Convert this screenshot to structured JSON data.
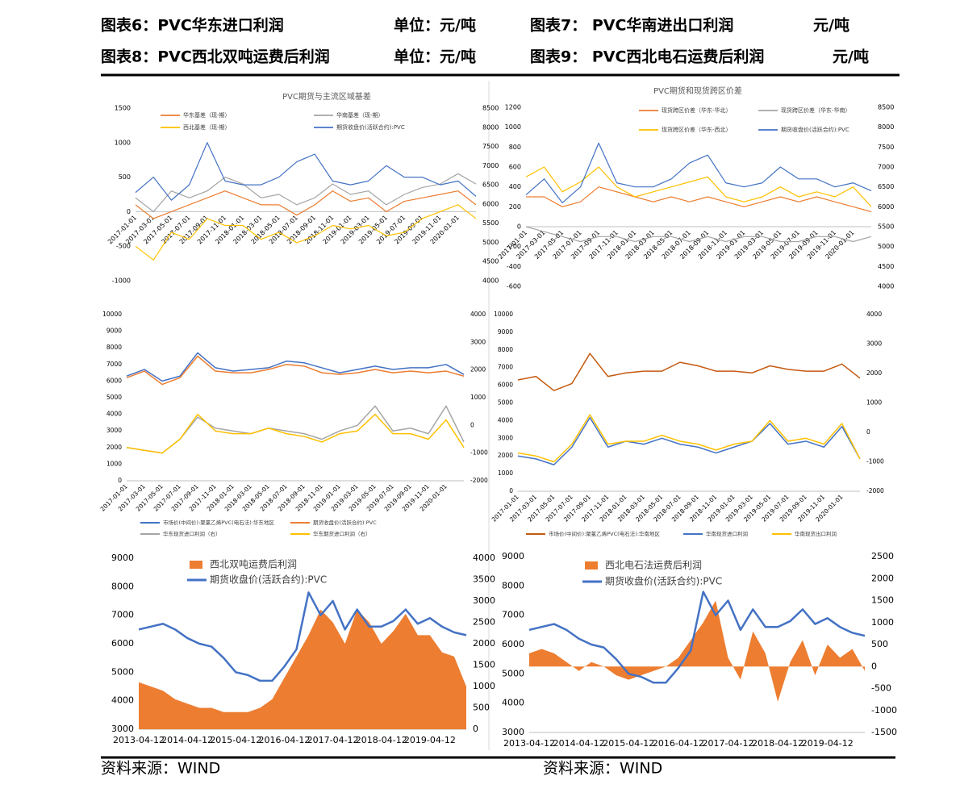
{
  "captions": [
    {
      "title": "图表6：PVC华东进口利润",
      "unit": "单位：元/吨"
    },
    {
      "title": "图表7：  PVC华南进出口利润",
      "unit": "元/吨"
    },
    {
      "title": "图表8：PVC西北双吨运费后利润",
      "unit": "单位：元/吨"
    },
    {
      "title": "图表9：  PVC西北电石运费后利润",
      "unit": "元/吨"
    }
  ],
  "sources": [
    "资料来源：WIND",
    "资料来源：WIND"
  ],
  "chart_data": [
    {
      "type": "line",
      "title": "PVC期货与主流区域基差",
      "categories": [
        "2017-01-01",
        "2017-03-01",
        "2017-05-01",
        "2017-07-01",
        "2017-09-01",
        "2017-11-01",
        "2018-01-01",
        "2018-03-01",
        "2018-05-01",
        "2018-07-01",
        "2018-09-01",
        "2018-11-01",
        "2019-01-01",
        "2019-03-01",
        "2019-05-01",
        "2019-07-01",
        "2019-09-01",
        "2019-11-01",
        "2020-01-01",
        null
      ],
      "ylim": [
        -1000,
        1500
      ],
      "yticks": [
        -1000,
        -500,
        0,
        500,
        1000,
        1500
      ],
      "y2lim": [
        4000,
        8500
      ],
      "y2ticks": [
        4000,
        4500,
        5000,
        5500,
        6000,
        6500,
        7000,
        7500,
        8000,
        8500
      ],
      "series": [
        {
          "name": "华东基差（现-期）",
          "color": "#ed7d31",
          "values": [
            100,
            -100,
            0,
            100,
            200,
            300,
            200,
            100,
            100,
            -50,
            100,
            300,
            150,
            200,
            0,
            150,
            200,
            250,
            300,
            100
          ]
        },
        {
          "name": "华南基差（现-期）",
          "color": "#a5a5a5",
          "values": [
            200,
            0,
            300,
            200,
            300,
            500,
            400,
            200,
            250,
            100,
            200,
            400,
            250,
            300,
            100,
            250,
            350,
            400,
            550,
            400
          ]
        },
        {
          "name": "西北基差（现-期）",
          "color": "#ffc000",
          "values": [
            -500,
            -700,
            -300,
            -400,
            -100,
            -200,
            -200,
            -400,
            -300,
            -450,
            -350,
            -200,
            -250,
            -200,
            -350,
            -300,
            -100,
            0,
            100,
            -100
          ]
        },
        {
          "name": "期货收盘价(活跃合约):PVC",
          "color": "#4472c4",
          "axis": "y2",
          "values": [
            6300,
            6700,
            6100,
            6500,
            7600,
            6600,
            6500,
            6500,
            6700,
            7100,
            7300,
            6600,
            6500,
            6600,
            7000,
            6700,
            6700,
            6500,
            6600,
            6200
          ]
        }
      ]
    },
    {
      "type": "line",
      "title": "PVC期货和现货跨区价差",
      "categories": [
        "2017-01-01",
        "2017-03-01",
        "2017-05-01",
        "2017-07-01",
        "2017-09-01",
        "2017-11-01",
        "2018-01-01",
        "2018-03-01",
        "2018-05-01",
        "2018-07-01",
        "2018-09-01",
        "2018-11-01",
        "2019-01-01",
        "2019-03-01",
        "2019-05-01",
        "2019-07-01",
        "2019-09-01",
        "2019-11-01",
        "2020-01-01",
        null
      ],
      "ylim": [
        -600,
        1200
      ],
      "yticks": [
        -600,
        -400,
        -200,
        0,
        200,
        400,
        600,
        800,
        1000,
        1200
      ],
      "y2lim": [
        4000,
        8500
      ],
      "y2ticks": [
        4000,
        4500,
        5000,
        5500,
        6000,
        6500,
        7000,
        7500,
        8000,
        8500
      ],
      "series": [
        {
          "name": "现货跨区价差（华东-华北）",
          "color": "#ed7d31",
          "values": [
            300,
            300,
            200,
            250,
            400,
            350,
            300,
            250,
            300,
            250,
            300,
            250,
            200,
            250,
            300,
            250,
            300,
            250,
            200,
            150
          ]
        },
        {
          "name": "现货跨区价差（华东-华南）",
          "color": "#a5a5a5",
          "values": [
            0,
            -50,
            -100,
            -150,
            -100,
            -100,
            -150,
            -100,
            -100,
            -150,
            -100,
            -150,
            -100,
            -100,
            -150,
            -150,
            -100,
            -100,
            -150,
            -100
          ]
        },
        {
          "name": "现货跨区价差（华东-西北）",
          "color": "#ffc000",
          "values": [
            500,
            600,
            350,
            450,
            600,
            400,
            300,
            350,
            400,
            450,
            500,
            300,
            250,
            300,
            400,
            300,
            350,
            300,
            400,
            200
          ]
        },
        {
          "name": "期货收盘价(活跃合约):PVC",
          "color": "#4472c4",
          "axis": "y2",
          "values": [
            6300,
            6700,
            6100,
            6500,
            7600,
            6600,
            6500,
            6500,
            6700,
            7100,
            7300,
            6600,
            6500,
            6600,
            7000,
            6700,
            6700,
            6500,
            6600,
            6400
          ]
        }
      ]
    },
    {
      "type": "line",
      "categories": [
        "2017-01-01",
        "2017-03-01",
        "2017-05-01",
        "2017-07-01",
        "2017-09-01",
        "2017-11-01",
        "2018-01-01",
        "2018-03-01",
        "2018-05-01",
        "2018-07-01",
        "2018-09-01",
        "2018-11-01",
        "2019-01-01",
        "2019-03-01",
        "2019-05-01",
        "2019-07-01",
        "2019-09-01",
        "2019-11-01",
        "2020-01-01",
        null
      ],
      "ylim": [
        0,
        10000
      ],
      "yticks": [
        0,
        1000,
        2000,
        3000,
        4000,
        5000,
        6000,
        7000,
        8000,
        9000,
        10000
      ],
      "y2lim": [
        -2000,
        4000
      ],
      "y2ticks": [
        -2000,
        -1000,
        0,
        1000,
        2000,
        3000,
        4000
      ],
      "series": [
        {
          "name": "市场价(中间价):聚氯乙烯PVC(电石法):华东地区",
          "color": "#4472c4",
          "values": [
            6300,
            6700,
            6000,
            6300,
            7700,
            6800,
            6600,
            6700,
            6800,
            7200,
            7100,
            6800,
            6500,
            6700,
            6900,
            6700,
            6800,
            6800,
            7000,
            6400
          ]
        },
        {
          "name": "期货收盘价(活跃合约):PVC",
          "color": "#ed7d31",
          "values": [
            6200,
            6600,
            5800,
            6200,
            7500,
            6600,
            6500,
            6500,
            6700,
            7000,
            6900,
            6500,
            6400,
            6500,
            6700,
            6500,
            6600,
            6500,
            6600,
            6300
          ]
        },
        {
          "name": "华东现货进口利润（右）",
          "color": "#a5a5a5",
          "axis": "y2",
          "values": [
            -800,
            -900,
            -1000,
            -500,
            300,
            -100,
            -200,
            -300,
            -100,
            -200,
            -300,
            -500,
            -200,
            0,
            700,
            -200,
            -100,
            -300,
            700,
            -600
          ]
        },
        {
          "name": "华东期货进口利润（右）",
          "color": "#ffc000",
          "axis": "y2",
          "values": [
            -800,
            -900,
            -1000,
            -500,
            400,
            -200,
            -300,
            -300,
            -100,
            -300,
            -400,
            -600,
            -300,
            -200,
            400,
            -300,
            -300,
            -500,
            200,
            -800
          ]
        }
      ]
    },
    {
      "type": "line",
      "categories": [
        "2017-01-01",
        "2017-03-01",
        "2017-05-01",
        "2017-07-01",
        "2017-09-01",
        "2017-11-01",
        "2018-01-01",
        "2018-03-01",
        "2018-05-01",
        "2018-07-01",
        "2018-09-01",
        "2018-11-01",
        "2019-01-01",
        "2019-03-01",
        "2019-05-01",
        "2019-07-01",
        "2019-09-01",
        "2019-11-01",
        "2020-01-01",
        null
      ],
      "ylim": [
        0,
        10000
      ],
      "yticks": [
        0,
        1000,
        2000,
        3000,
        4000,
        5000,
        6000,
        7000,
        8000,
        9000,
        10000
      ],
      "y2lim": [
        -2000,
        4000
      ],
      "y2ticks": [
        -2000,
        -1000,
        0,
        1000,
        2000,
        3000,
        4000
      ],
      "series": [
        {
          "name": "市场价(中间价):聚氯乙烯PVC(电石法):华南地区",
          "color": "#c55a11",
          "values": [
            6300,
            6500,
            5700,
            6100,
            7800,
            6500,
            6700,
            6800,
            6800,
            7300,
            7100,
            6800,
            6800,
            6700,
            7100,
            6900,
            6800,
            6800,
            7200,
            6400
          ]
        },
        {
          "name": "华南现货进口利润",
          "color": "#4472c4",
          "axis": "y2",
          "values": [
            -800,
            -900,
            -1100,
            -500,
            500,
            -500,
            -300,
            -400,
            -200,
            -400,
            -500,
            -700,
            -500,
            -300,
            300,
            -400,
            -300,
            -500,
            200,
            -900
          ]
        },
        {
          "name": "华南现货出口利润",
          "color": "#ffc000",
          "axis": "y2",
          "values": [
            -700,
            -800,
            -1000,
            -400,
            600,
            -400,
            -300,
            -300,
            -100,
            -300,
            -400,
            -600,
            -400,
            -300,
            400,
            -300,
            -200,
            -400,
            300,
            -900
          ]
        }
      ]
    },
    {
      "type": "line",
      "categories": [
        "2013-04-12",
        null,
        null,
        null,
        "2014-04-12",
        null,
        null,
        null,
        "2015-04-12",
        null,
        null,
        null,
        "2016-04-12",
        null,
        null,
        null,
        "2017-04-12",
        null,
        null,
        null,
        "2018-04-12",
        null,
        null,
        null,
        "2019-04-12",
        null,
        null,
        null
      ],
      "ylim": [
        3000,
        9000
      ],
      "yticks": [
        3000,
        4000,
        5000,
        6000,
        7000,
        8000,
        9000
      ],
      "y2lim": [
        0,
        4000
      ],
      "y2ticks": [
        0,
        500,
        1000,
        1500,
        2000,
        2500,
        3000,
        3500,
        4000
      ],
      "series": [
        {
          "name": "西北双吨运费后利润",
          "color": "#ed7d31",
          "kind": "area",
          "axis": "y2",
          "values": [
            1100,
            1000,
            900,
            700,
            600,
            500,
            500,
            400,
            400,
            400,
            500,
            700,
            1200,
            1700,
            2200,
            2800,
            2500,
            2000,
            2800,
            2500,
            2000,
            2300,
            2700,
            2200,
            2200,
            1800,
            1700,
            1000
          ]
        },
        {
          "name": "期货收盘价(活跃合约):PVC",
          "color": "#4472c4",
          "values": [
            6500,
            6600,
            6700,
            6500,
            6200,
            6000,
            5900,
            5500,
            5000,
            4900,
            4700,
            4700,
            5200,
            5800,
            7800,
            7000,
            7500,
            6500,
            7200,
            6600,
            6600,
            6800,
            7200,
            6700,
            6900,
            6600,
            6400,
            6300
          ]
        }
      ]
    },
    {
      "type": "line",
      "categories": [
        "2013-04-12",
        null,
        null,
        null,
        "2014-04-12",
        null,
        null,
        null,
        "2015-04-12",
        null,
        null,
        null,
        "2016-04-12",
        null,
        null,
        null,
        "2017-04-12",
        null,
        null,
        null,
        "2018-04-12",
        null,
        null,
        null,
        "2019-04-12",
        null,
        null,
        null
      ],
      "ylim": [
        3000,
        9000
      ],
      "yticks": [
        3000,
        4000,
        5000,
        6000,
        7000,
        8000,
        9000
      ],
      "y2lim": [
        -1500,
        2500
      ],
      "y2ticks": [
        -1500,
        -1000,
        -500,
        0,
        500,
        1000,
        1500,
        2000,
        2500
      ],
      "series": [
        {
          "name": "西北电石法运费后利润",
          "color": "#ed7d31",
          "kind": "area",
          "axis": "y2",
          "values": [
            300,
            400,
            300,
            100,
            -100,
            100,
            0,
            -200,
            -300,
            -200,
            -100,
            0,
            200,
            600,
            1000,
            1500,
            200,
            -300,
            800,
            300,
            -800,
            100,
            600,
            -200,
            500,
            200,
            400,
            -100
          ]
        },
        {
          "name": "期货收盘价(活跃合约):PVC",
          "color": "#4472c4",
          "values": [
            6500,
            6600,
            6700,
            6500,
            6200,
            6000,
            5900,
            5500,
            5000,
            4900,
            4700,
            4700,
            5200,
            5800,
            7800,
            7000,
            7500,
            6500,
            7200,
            6600,
            6600,
            6800,
            7200,
            6700,
            6900,
            6600,
            6400,
            6300
          ]
        }
      ]
    }
  ]
}
